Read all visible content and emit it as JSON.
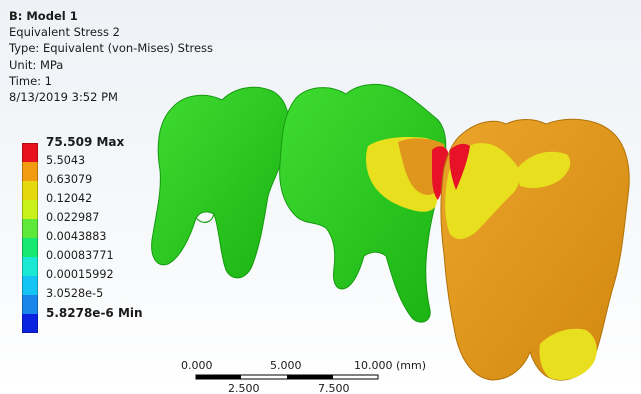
{
  "header": {
    "title": "B: Model 1",
    "result_name": "Equivalent Stress 2",
    "type_line": "Type: Equivalent (von-Mises) Stress",
    "unit_line": "Unit: MPa",
    "time_line": "Time: 1",
    "timestamp": "8/13/2019 3:52 PM"
  },
  "legend": {
    "items": [
      {
        "label": "75.509 Max",
        "color": "#e8101c",
        "bold": true
      },
      {
        "label": "5.5043",
        "color": "#f29a10",
        "bold": false
      },
      {
        "label": "0.63079",
        "color": "#e5d80c",
        "bold": false
      },
      {
        "label": "0.12042",
        "color": "#c8f01a",
        "bold": false
      },
      {
        "label": "0.022987",
        "color": "#5de83a",
        "bold": false
      },
      {
        "label": "0.0043883",
        "color": "#17e870",
        "bold": false
      },
      {
        "label": "0.00083771",
        "color": "#1ae8d2",
        "bold": false
      },
      {
        "label": "0.00015992",
        "color": "#14c4f2",
        "bold": false
      },
      {
        "label": "3.0528e-5",
        "color": "#1a86ec",
        "bold": false
      },
      {
        "label": "5.8278e-6 Min",
        "color": "#0b22e0",
        "bold": true
      }
    ]
  },
  "scale": {
    "top_labels": [
      "0.000",
      "5.000",
      "10.000 (mm)"
    ],
    "bottom_labels": [
      "2.500",
      "7.500"
    ]
  },
  "colors": {
    "green": "#22c81a",
    "orange": "#e0961c",
    "yellow": "#e8e01e",
    "red": "#e81228"
  }
}
